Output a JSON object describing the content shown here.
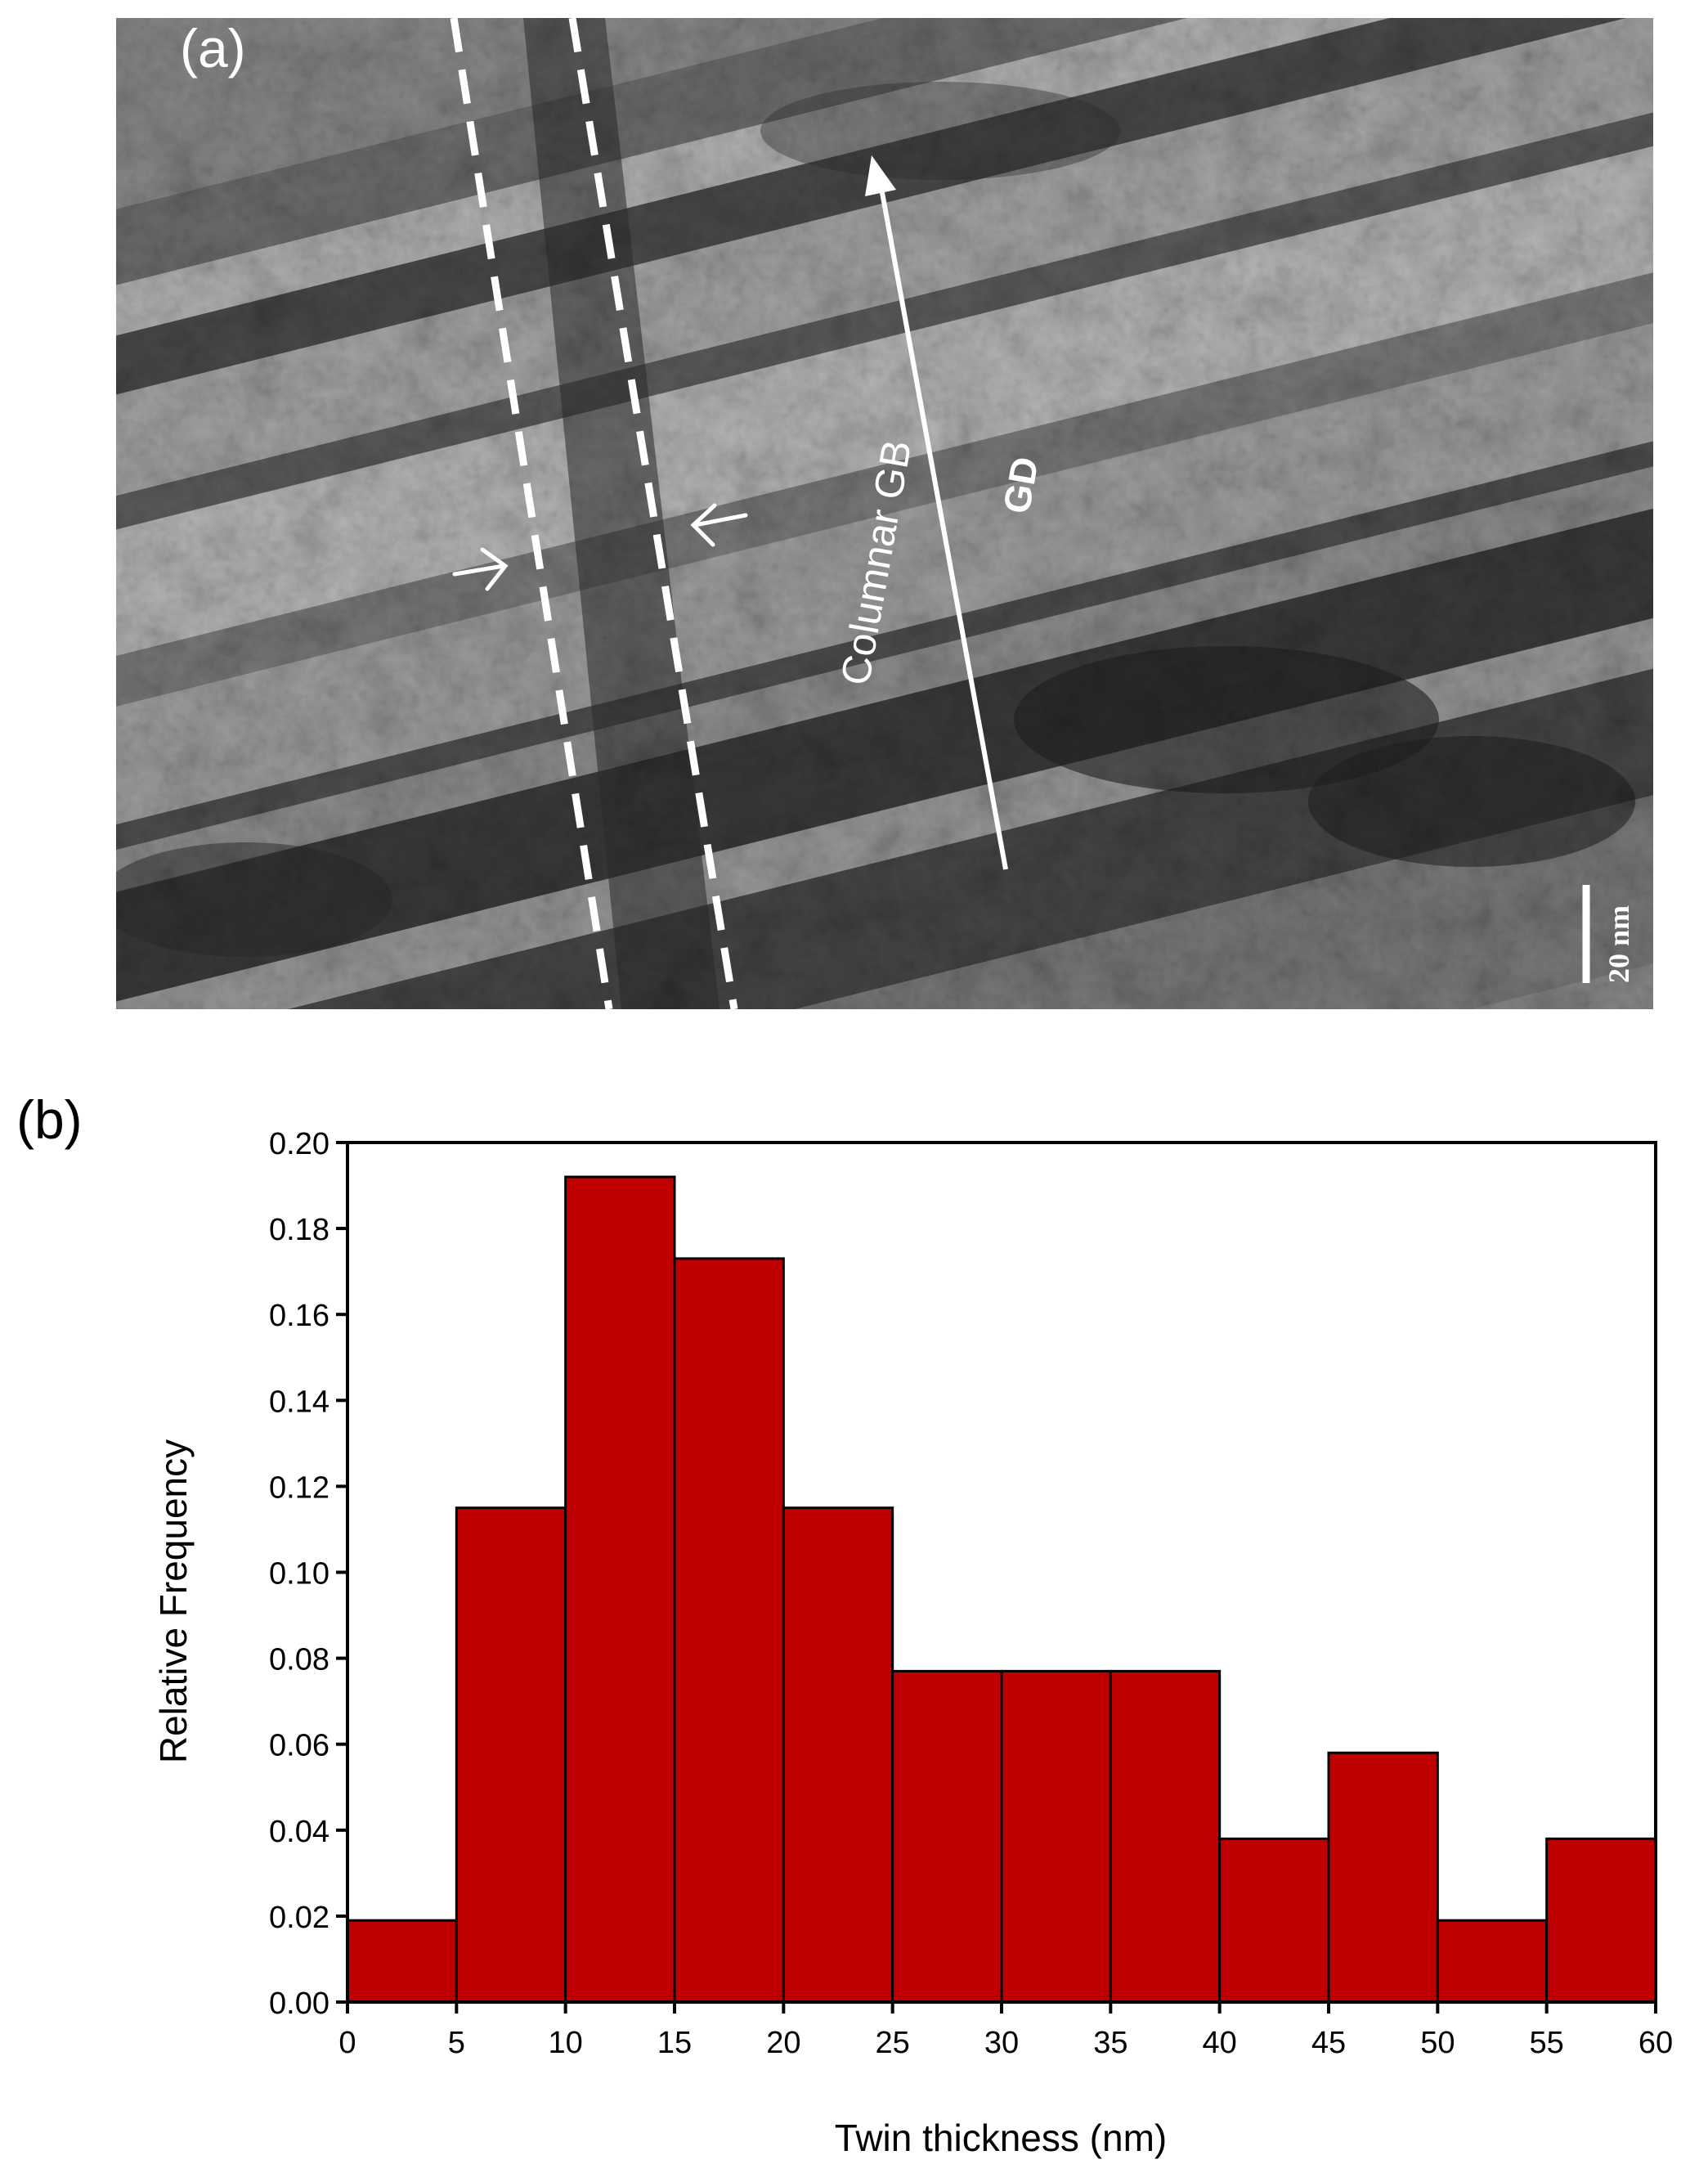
{
  "panel_a": {
    "label": "(a)",
    "annotations": {
      "columnar_gb": "Columnar GB",
      "growth_direction": "GD",
      "scale_bar": "20 nm"
    }
  },
  "panel_b": {
    "label": "(b)"
  },
  "chart_data": {
    "type": "bar",
    "title": "",
    "xlabel": "Twin thickness (nm)",
    "ylabel": "Relative Frequency",
    "bin_edges": [
      0,
      5,
      10,
      15,
      20,
      25,
      30,
      35,
      40,
      45,
      50,
      55,
      60
    ],
    "values": [
      0.019,
      0.115,
      0.192,
      0.173,
      0.115,
      0.077,
      0.077,
      0.077,
      0.038,
      0.058,
      0.019,
      0.038
    ],
    "xlim": [
      0,
      60
    ],
    "ylim": [
      0,
      0.2
    ],
    "xticks": [
      "0",
      "5",
      "10",
      "15",
      "20",
      "25",
      "30",
      "35",
      "40",
      "45",
      "50",
      "55",
      "60"
    ],
    "yticks": [
      "0.00",
      "0.02",
      "0.04",
      "0.06",
      "0.08",
      "0.10",
      "0.12",
      "0.14",
      "0.16",
      "0.18",
      "0.20"
    ],
    "bar_color": "#c00000",
    "grid": false
  }
}
